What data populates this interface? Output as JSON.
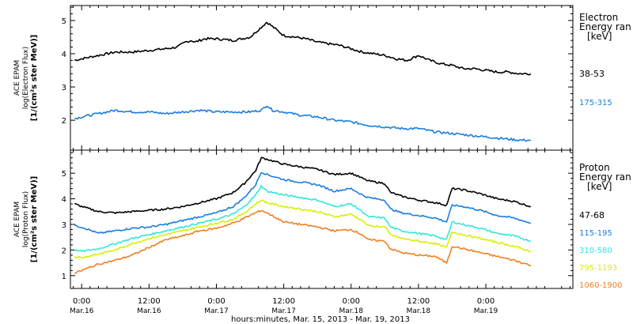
{
  "chart_data": [
    {
      "type": "line",
      "panel": "electron",
      "ylabel": [
        "ACE EPAM",
        "log(Electron Flux)",
        "[1/(cm²s ster MeV)]"
      ],
      "ylim": [
        1.1,
        5.45
      ],
      "yticks": [
        "2",
        "3",
        "4",
        "5"
      ],
      "legend_title": [
        "Electron",
        "Energy ran",
        "[keV]"
      ],
      "series": [
        {
          "name": "38-53",
          "color": "#000000",
          "x": [
            -2.5,
            0,
            6,
            12,
            18,
            24,
            30,
            34,
            37,
            39,
            40.5,
            42,
            44,
            48,
            54,
            60,
            66,
            72,
            76,
            80,
            84,
            88,
            92,
            96,
            100,
            104,
            108,
            112,
            116,
            120,
            124,
            128,
            132,
            136,
            140,
            144,
            148,
            152,
            156,
            160
          ],
          "y": [
            3.8,
            3.85,
            3.95,
            4.05,
            4.05,
            4.1,
            4.15,
            4.2,
            4.35,
            4.4,
            4.35,
            4.4,
            4.45,
            4.45,
            4.4,
            4.5,
            4.95,
            4.55,
            4.5,
            4.45,
            4.35,
            4.3,
            4.25,
            4.15,
            4.05,
            4.0,
            3.95,
            3.85,
            3.8,
            3.95,
            3.8,
            3.7,
            3.65,
            3.55,
            3.55,
            3.5,
            3.45,
            3.45,
            3.4,
            3.4
          ]
        },
        {
          "name": "175-315",
          "color": "#1a7de0",
          "x": [
            -2.5,
            0,
            6,
            12,
            18,
            24,
            30,
            36,
            42,
            48,
            54,
            60,
            64,
            66,
            68,
            72,
            78,
            84,
            90,
            96,
            102,
            108,
            114,
            120,
            126,
            132,
            138,
            144,
            150,
            156,
            160
          ],
          "y": [
            2.05,
            2.1,
            2.2,
            2.3,
            2.25,
            2.25,
            2.2,
            2.25,
            2.3,
            2.25,
            2.25,
            2.25,
            2.3,
            2.45,
            2.3,
            2.25,
            2.15,
            2.1,
            2.0,
            1.95,
            1.85,
            1.8,
            1.75,
            1.75,
            1.65,
            1.6,
            1.55,
            1.5,
            1.45,
            1.4,
            1.4
          ]
        }
      ],
      "legend_labels": [
        "38-53",
        "175-315"
      ]
    },
    {
      "type": "line",
      "panel": "proton",
      "ylabel": [
        "ACE EPAM",
        "log(Proton Flux)",
        "[1/(cm²s ster MeV)]"
      ],
      "ylim": [
        0.5,
        5.9
      ],
      "yticks": [
        "1",
        "2",
        "3",
        "4",
        "5"
      ],
      "legend_title": [
        "Proton",
        "Energy ran",
        "[keV]"
      ],
      "series": [
        {
          "name": "47-68",
          "color": "#000000",
          "x": [
            -2.5,
            0,
            6,
            12,
            18,
            24,
            30,
            36,
            42,
            48,
            54,
            58,
            62,
            64,
            66,
            72,
            78,
            84,
            90,
            96,
            100,
            102,
            108,
            110,
            114,
            120,
            126,
            130,
            132,
            136,
            142,
            148,
            154,
            160
          ],
          "y": [
            3.8,
            3.7,
            3.5,
            3.45,
            3.5,
            3.55,
            3.6,
            3.7,
            3.85,
            4.0,
            4.25,
            4.6,
            5.1,
            5.6,
            5.55,
            5.35,
            5.25,
            5.15,
            4.95,
            5.0,
            4.8,
            4.7,
            4.6,
            4.25,
            4.1,
            3.95,
            3.85,
            3.75,
            4.4,
            4.35,
            4.2,
            4.0,
            3.9,
            3.7
          ]
        },
        {
          "name": "115-195",
          "color": "#1a7de0",
          "x": [
            -2.5,
            0,
            6,
            12,
            18,
            24,
            30,
            36,
            42,
            48,
            54,
            58,
            62,
            64,
            66,
            72,
            78,
            84,
            90,
            96,
            100,
            102,
            108,
            110,
            114,
            120,
            126,
            130,
            132,
            136,
            142,
            148,
            154,
            160
          ],
          "y": [
            2.95,
            2.9,
            2.65,
            2.75,
            2.85,
            2.9,
            3.0,
            3.15,
            3.3,
            3.45,
            3.7,
            4.05,
            4.55,
            5.05,
            4.95,
            4.75,
            4.65,
            4.55,
            4.3,
            4.4,
            4.15,
            4.05,
            3.95,
            3.6,
            3.45,
            3.35,
            3.25,
            3.1,
            3.75,
            3.7,
            3.55,
            3.35,
            3.25,
            3.05
          ]
        },
        {
          "name": "310-580",
          "color": "#33e6dc",
          "x": [
            -2.5,
            0,
            6,
            12,
            18,
            24,
            30,
            36,
            42,
            48,
            54,
            58,
            62,
            64,
            66,
            72,
            78,
            84,
            90,
            96,
            100,
            102,
            108,
            110,
            114,
            120,
            126,
            130,
            132,
            136,
            142,
            148,
            154,
            160
          ],
          "y": [
            2.0,
            1.95,
            2.05,
            2.25,
            2.45,
            2.6,
            2.75,
            2.9,
            3.05,
            3.2,
            3.4,
            3.7,
            4.15,
            4.5,
            4.3,
            4.15,
            4.05,
            3.95,
            3.7,
            3.8,
            3.5,
            3.3,
            3.25,
            2.9,
            2.75,
            2.65,
            2.55,
            2.4,
            3.1,
            3.0,
            2.85,
            2.65,
            2.55,
            2.35
          ]
        },
        {
          "name": "795-1193",
          "color": "#d7f000",
          "x": [
            -2.5,
            0,
            6,
            12,
            18,
            24,
            30,
            36,
            42,
            48,
            54,
            58,
            62,
            64,
            66,
            72,
            78,
            84,
            90,
            96,
            100,
            102,
            108,
            110,
            114,
            120,
            126,
            130,
            132,
            136,
            142,
            148,
            154,
            160
          ],
          "y": [
            1.75,
            1.7,
            1.85,
            2.0,
            2.25,
            2.45,
            2.6,
            2.75,
            2.9,
            3.05,
            3.2,
            3.45,
            3.8,
            3.95,
            3.85,
            3.7,
            3.6,
            3.5,
            3.3,
            3.4,
            3.15,
            2.95,
            2.9,
            2.6,
            2.45,
            2.35,
            2.25,
            2.1,
            2.7,
            2.6,
            2.45,
            2.3,
            2.15,
            1.95
          ]
        },
        {
          "name": "1060-1900",
          "color": "#f08020",
          "x": [
            -2.5,
            0,
            6,
            12,
            18,
            24,
            30,
            36,
            42,
            48,
            54,
            58,
            62,
            64,
            66,
            72,
            78,
            84,
            90,
            96,
            100,
            102,
            108,
            110,
            114,
            120,
            126,
            130,
            132,
            136,
            142,
            148,
            154,
            160
          ],
          "y": [
            1.1,
            1.2,
            1.45,
            1.6,
            1.8,
            2.1,
            2.4,
            2.55,
            2.75,
            2.85,
            3.05,
            3.25,
            3.45,
            3.55,
            3.45,
            3.1,
            3.0,
            2.9,
            2.75,
            2.8,
            2.6,
            2.4,
            2.35,
            2.05,
            1.9,
            1.8,
            1.75,
            1.5,
            2.15,
            2.05,
            1.9,
            1.75,
            1.6,
            1.4
          ]
        }
      ],
      "legend_labels": [
        "47-68",
        "115-195",
        "310-580",
        "795-1193",
        "1060-1900"
      ]
    }
  ],
  "x_axis": {
    "xlim": [
      -4,
      175
    ],
    "ticks": [
      {
        "x": 0,
        "time": "0:00",
        "date": "Mar.16"
      },
      {
        "x": 24,
        "time": "12:00",
        "date": "Mar.16"
      },
      {
        "x": 48,
        "time": "0:00",
        "date": "Mar.17"
      },
      {
        "x": 72,
        "time": "12:00",
        "date": "Mar.17"
      },
      {
        "x": 96,
        "time": "0:00",
        "date": "Mar.18"
      },
      {
        "x": 120,
        "time": "12:00",
        "date": "Mar.18"
      },
      {
        "x": 144,
        "time": "0:00",
        "date": "Mar.19"
      }
    ],
    "label": "hours:minutes, Mar. 15, 2013 - Mar. 19, 2013"
  }
}
